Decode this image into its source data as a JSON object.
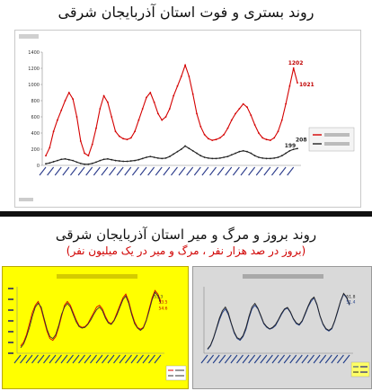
{
  "title": "روند بستری و فوت استان آذربایجان شرقی",
  "section2_title": "روند بروز و مرگ و میر استان آذربایجان شرقی",
  "section2_subtitle": "(بروز در صد هزار نفر ، مرگ و میر در یک میلیون نفر)",
  "chart_data": [
    {
      "type": "line",
      "title": "",
      "ylim": [
        0,
        1400
      ],
      "yticks": [
        0,
        200,
        400,
        600,
        800,
        1000,
        1200,
        1400
      ],
      "grid": false,
      "legend_position": "right",
      "series": [
        {
          "name": "",
          "color": "#d40000",
          "values": [
            120,
            220,
            420,
            560,
            680,
            800,
            900,
            820,
            600,
            300,
            150,
            120,
            260,
            460,
            700,
            860,
            780,
            600,
            420,
            360,
            330,
            320,
            340,
            420,
            560,
            700,
            840,
            900,
            780,
            640,
            560,
            600,
            700,
            860,
            980,
            1100,
            1240,
            1100,
            880,
            640,
            480,
            380,
            330,
            310,
            320,
            340,
            380,
            460,
            560,
            640,
            700,
            760,
            720,
            620,
            500,
            400,
            340,
            320,
            310,
            340,
            420,
            560,
            760,
            980,
            1202,
            1021
          ]
        },
        {
          "name": "",
          "color": "#222222",
          "values": [
            20,
            30,
            45,
            60,
            75,
            80,
            70,
            60,
            40,
            25,
            15,
            15,
            25,
            40,
            60,
            75,
            80,
            70,
            60,
            55,
            50,
            50,
            55,
            60,
            70,
            85,
            100,
            110,
            100,
            90,
            85,
            90,
            110,
            140,
            170,
            200,
            240,
            210,
            180,
            150,
            120,
            100,
            90,
            85,
            85,
            90,
            100,
            110,
            130,
            150,
            170,
            180,
            170,
            150,
            120,
            100,
            90,
            85,
            85,
            90,
            100,
            120,
            150,
            180,
            199,
            208
          ]
        }
      ],
      "annotations": [
        "1202",
        "1021",
        "208",
        "199"
      ]
    },
    {
      "type": "line",
      "title": "",
      "series": [
        {
          "name": "",
          "color": "#d40000",
          "values": [
            20,
            30,
            50,
            80,
            110,
            130,
            140,
            120,
            90,
            60,
            40,
            35,
            45,
            70,
            100,
            130,
            140,
            130,
            110,
            90,
            75,
            70,
            72,
            80,
            95,
            110,
            125,
            130,
            120,
            100,
            85,
            80,
            90,
            110,
            130,
            150,
            160,
            140,
            110,
            85,
            70,
            65,
            70,
            90,
            120,
            150,
            170,
            160,
            140
          ]
        },
        {
          "name": "",
          "color": "#333333",
          "values": [
            15,
            25,
            45,
            70,
            100,
            125,
            135,
            125,
            95,
            65,
            45,
            40,
            50,
            75,
            105,
            125,
            135,
            125,
            105,
            85,
            72,
            68,
            70,
            78,
            90,
            105,
            118,
            125,
            115,
            95,
            82,
            78,
            88,
            105,
            125,
            145,
            155,
            135,
            105,
            80,
            68,
            62,
            68,
            88,
            115,
            145,
            165,
            155,
            135
          ]
        }
      ],
      "annotations": [
        "53.3",
        "53.5",
        "54.6"
      ]
    },
    {
      "type": "line",
      "title": "",
      "series": [
        {
          "name": "",
          "color": "#1f3c88",
          "values": [
            10,
            20,
            40,
            65,
            90,
            110,
            120,
            105,
            80,
            55,
            40,
            35,
            45,
            65,
            95,
            120,
            130,
            120,
            100,
            80,
            70,
            65,
            68,
            75,
            90,
            105,
            118,
            122,
            110,
            92,
            80,
            76,
            86,
            105,
            125,
            140,
            150,
            130,
            100,
            78,
            65,
            60,
            66,
            86,
            112,
            140,
            160,
            150,
            130
          ]
        },
        {
          "name": "",
          "color": "#222222",
          "values": [
            12,
            22,
            42,
            68,
            95,
            115,
            125,
            110,
            82,
            58,
            42,
            38,
            48,
            70,
            100,
            125,
            135,
            122,
            102,
            82,
            72,
            66,
            70,
            78,
            92,
            108,
            120,
            124,
            112,
            94,
            82,
            78,
            88,
            108,
            128,
            145,
            152,
            132,
            102,
            80,
            67,
            62,
            68,
            88,
            115,
            142,
            162,
            152,
            132
          ]
        }
      ],
      "annotations": [
        "51.8",
        "51.4"
      ]
    }
  ]
}
